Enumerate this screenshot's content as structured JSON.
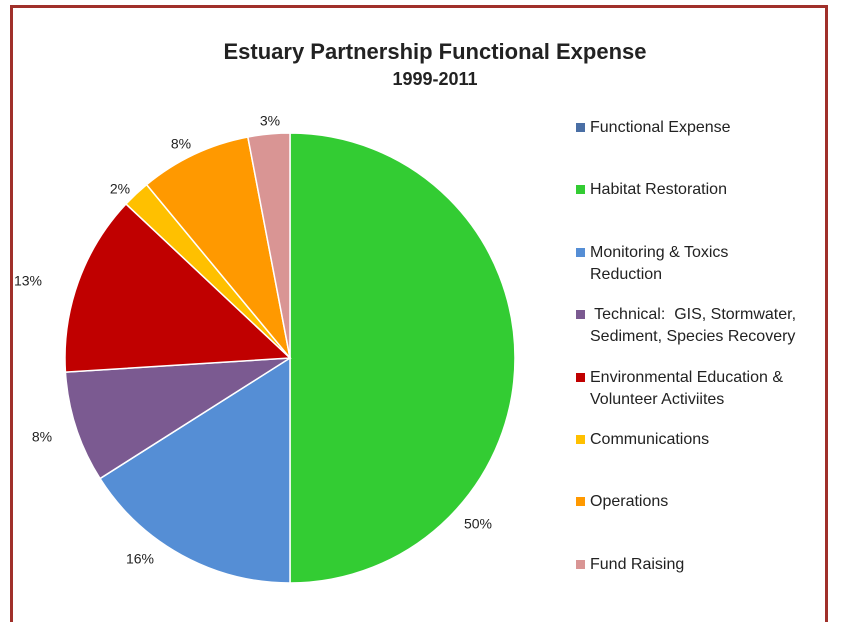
{
  "chart_data": {
    "type": "pie",
    "title": "Estuary Partnership Functional Expense",
    "subtitle": "1999-2011",
    "categories": [
      "Functional Expense",
      "Habitat Restoration",
      "Monitoring & Toxics\nReduction",
      " Technical:  GIS, Stormwater,\nSediment, Species Recovery",
      "Environmental Education &\nVolunteer Activiites",
      "Communications",
      "Operations",
      "Fund Raising"
    ],
    "values": [
      0,
      50,
      16,
      8,
      13,
      2,
      8,
      3
    ],
    "value_labels": [
      null,
      "50%",
      "16%",
      "8%",
      "13%",
      "2%",
      "8%",
      "3%"
    ],
    "colors": [
      "#4a6fa5",
      "#33cc33",
      "#558ed5",
      "#7b5a91",
      "#c00000",
      "#ffc000",
      "#ff9900",
      "#d99594"
    ],
    "legend": "right"
  }
}
